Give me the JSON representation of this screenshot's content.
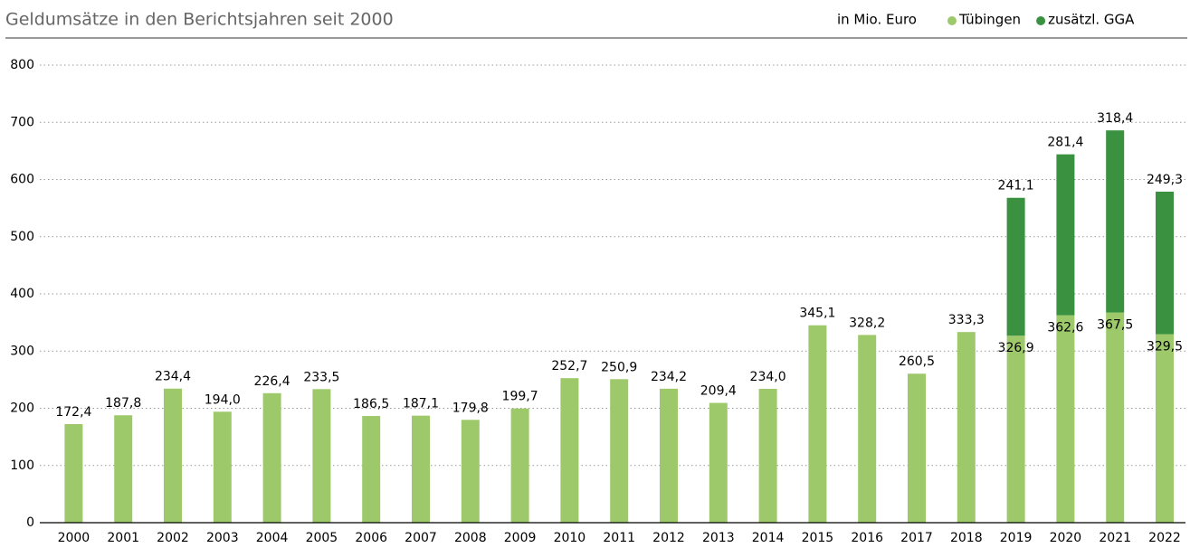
{
  "chart_data": {
    "type": "stacked_bar",
    "title": "Geldumsätze in den Berichtsjahren seit 2000",
    "unit": "in Mio. Euro",
    "categories": [
      "2000",
      "2001",
      "2002",
      "2003",
      "2004",
      "2005",
      "2006",
      "2007",
      "2008",
      "2009",
      "2010",
      "2011",
      "2012",
      "2013",
      "2014",
      "2015",
      "2016",
      "2017",
      "2018",
      "2019",
      "2020",
      "2021",
      "2022"
    ],
    "series": [
      {
        "name": "Tübingen",
        "color": "#9dc96b",
        "values": [
          172.4,
          187.8,
          234.4,
          194.0,
          226.4,
          233.5,
          186.5,
          187.1,
          179.8,
          199.7,
          252.7,
          250.9,
          234.2,
          209.4,
          234.0,
          345.1,
          328.2,
          260.5,
          333.3,
          326.9,
          362.6,
          367.5,
          329.5
        ],
        "value_labels": [
          "172,4",
          "187,8",
          "234,4",
          "194,0",
          "226,4",
          "233,5",
          "186,5",
          "187,1",
          "179,8",
          "199,7",
          "252,7",
          "250,9",
          "234,2",
          "209,4",
          "234,0",
          "345,1",
          "328,2",
          "260,5",
          "333,3",
          "326,9",
          "362,6",
          "367,5",
          "329,5"
        ]
      },
      {
        "name": "zusätzl. GGA",
        "color": "#3a9140",
        "values": [
          null,
          null,
          null,
          null,
          null,
          null,
          null,
          null,
          null,
          null,
          null,
          null,
          null,
          null,
          null,
          null,
          null,
          null,
          null,
          241.1,
          281.4,
          318.4,
          249.3
        ],
        "value_labels": [
          null,
          null,
          null,
          null,
          null,
          null,
          null,
          null,
          null,
          null,
          null,
          null,
          null,
          null,
          null,
          null,
          null,
          null,
          null,
          "241,1",
          "281,4",
          "318,4",
          "249,3"
        ]
      }
    ],
    "ylim": [
      0,
      800
    ],
    "yticks": [
      0,
      100,
      200,
      300,
      400,
      500,
      600,
      700,
      800
    ],
    "grid": true
  }
}
